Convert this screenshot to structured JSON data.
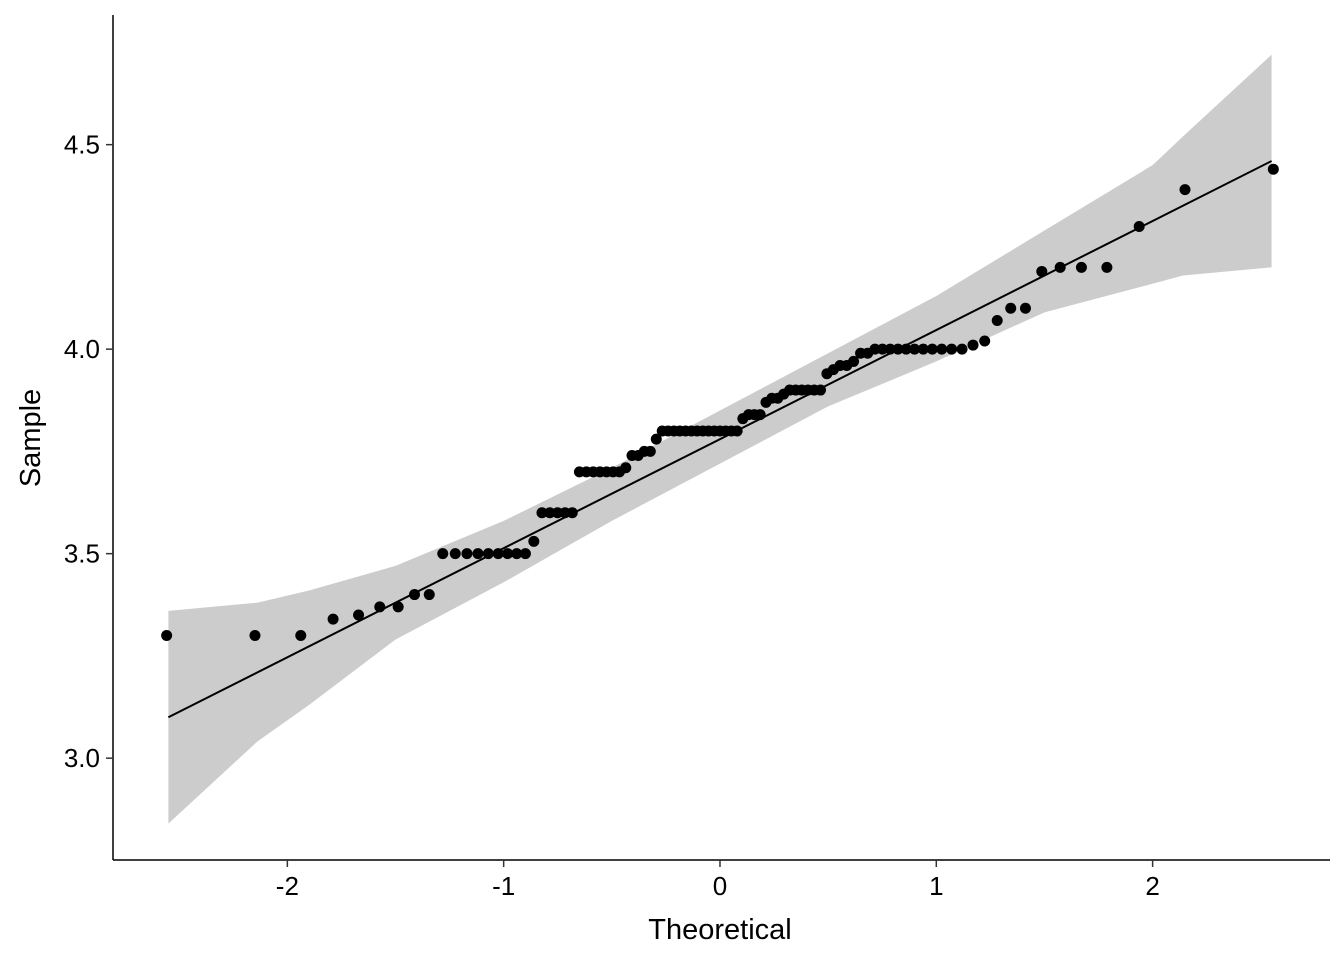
{
  "chart_data": {
    "type": "scatter",
    "subtype": "qq-plot",
    "title": "",
    "xlabel": "Theoretical",
    "ylabel": "Sample",
    "xlim": [
      -2.806,
      2.82
    ],
    "ylim": [
      2.751,
      4.817
    ],
    "xticks": [
      -2,
      -1,
      0,
      1,
      2
    ],
    "xtick_labels": [
      "-2",
      "-1",
      "0",
      "1",
      "2"
    ],
    "yticks": [
      3.0,
      3.5,
      4.0,
      4.5
    ],
    "ytick_labels": [
      "3.0",
      "3.5",
      "4.0",
      "4.5"
    ],
    "grid": false,
    "sample": [
      3.3,
      3.3,
      3.3,
      3.34,
      3.35,
      3.37,
      3.37,
      3.4,
      3.4,
      3.5,
      3.5,
      3.5,
      3.5,
      3.5,
      3.5,
      3.5,
      3.5,
      3.5,
      3.53,
      3.6,
      3.6,
      3.6,
      3.6,
      3.6,
      3.7,
      3.7,
      3.7,
      3.7,
      3.7,
      3.7,
      3.7,
      3.71,
      3.74,
      3.74,
      3.75,
      3.75,
      3.78,
      3.8,
      3.8,
      3.8,
      3.8,
      3.8,
      3.8,
      3.8,
      3.8,
      3.8,
      3.8,
      3.8,
      3.8,
      3.8,
      3.8,
      3.83,
      3.84,
      3.84,
      3.84,
      3.87,
      3.88,
      3.88,
      3.89,
      3.9,
      3.9,
      3.9,
      3.9,
      3.9,
      3.9,
      3.94,
      3.95,
      3.96,
      3.96,
      3.97,
      3.99,
      3.99,
      4.0,
      4.0,
      4.0,
      4.0,
      4.0,
      4.0,
      4.0,
      4.0,
      4.0,
      4.0,
      4.0,
      4.01,
      4.02,
      4.07,
      4.1,
      4.1,
      4.19,
      4.2,
      4.2,
      4.2,
      4.3,
      4.39,
      4.44
    ],
    "reference_line": {
      "x": [
        -2.55,
        2.55
      ],
      "y": [
        3.1,
        4.46
      ]
    },
    "confidence_band": {
      "x": [
        -2.55,
        -2.14,
        -1.9,
        -1.5,
        -1,
        -0.5,
        0,
        0.5,
        1,
        1.5,
        2,
        2.14,
        2.55
      ],
      "upper": [
        3.36,
        3.38,
        3.41,
        3.47,
        3.58,
        3.71,
        3.85,
        3.99,
        4.13,
        4.29,
        4.45,
        4.52,
        4.72
      ],
      "lower": [
        2.84,
        3.04,
        3.13,
        3.29,
        3.43,
        3.58,
        3.72,
        3.86,
        3.97,
        4.09,
        4.16,
        4.18,
        4.2
      ]
    },
    "colors": {
      "point": "#000000",
      "band": "#cccccc",
      "line": "#000000"
    }
  }
}
